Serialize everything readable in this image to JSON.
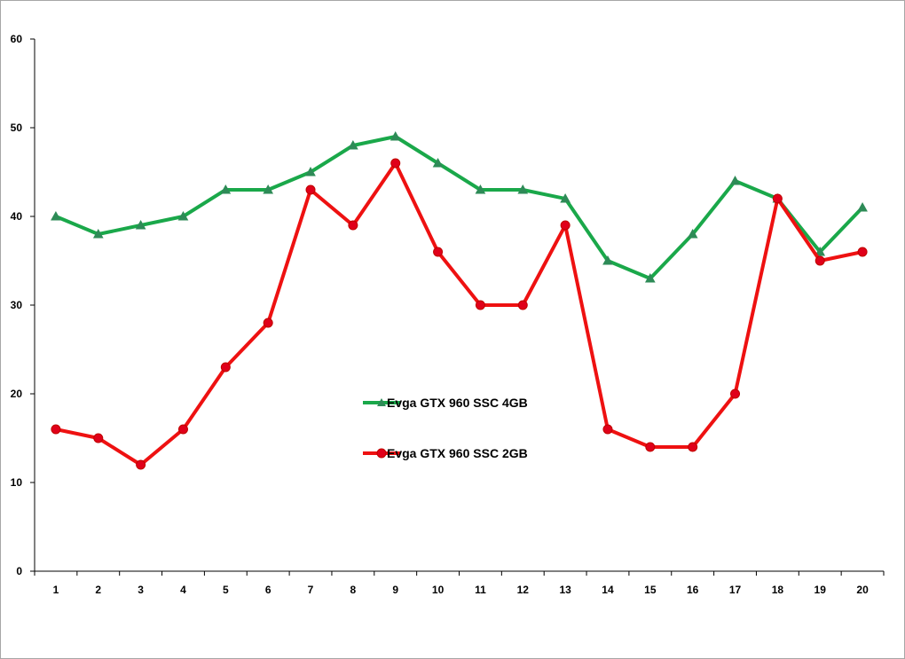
{
  "chart_data": {
    "type": "line",
    "title": "",
    "xlabel": "",
    "ylabel": "",
    "x": [
      1,
      2,
      3,
      4,
      5,
      6,
      7,
      8,
      9,
      10,
      11,
      12,
      13,
      14,
      15,
      16,
      17,
      18,
      19,
      20
    ],
    "x_tick_labels": [
      "1",
      "2",
      "3",
      "4",
      "5",
      "6",
      "7",
      "8",
      "9",
      "10",
      "11",
      "12",
      "13",
      "14",
      "15",
      "16",
      "17",
      "18",
      "19",
      "20"
    ],
    "ylim": [
      0,
      60
    ],
    "y_ticks": [
      0,
      10,
      20,
      30,
      40,
      50,
      60
    ],
    "y_tick_labels": [
      "0",
      "10",
      "20",
      "30",
      "40",
      "50",
      "60"
    ],
    "grid": false,
    "legend_position": "center",
    "series": [
      {
        "name": "Evga GTX 960 SSC 4GB",
        "color": "#1aa84a",
        "marker_color": "#2e8b57",
        "marker": "triangle",
        "values": [
          40,
          38,
          39,
          40,
          43,
          43,
          45,
          48,
          49,
          46,
          43,
          43,
          42,
          35,
          33,
          38,
          44,
          42,
          36,
          41
        ]
      },
      {
        "name": "Evga GTX 960 SSC 2GB",
        "color": "#ee1111",
        "marker_color": "#e0001a",
        "marker": "circle",
        "values": [
          16,
          15,
          12,
          16,
          23,
          28,
          43,
          39,
          46,
          36,
          30,
          30,
          39,
          16,
          14,
          14,
          20,
          42,
          35,
          36
        ]
      }
    ]
  }
}
